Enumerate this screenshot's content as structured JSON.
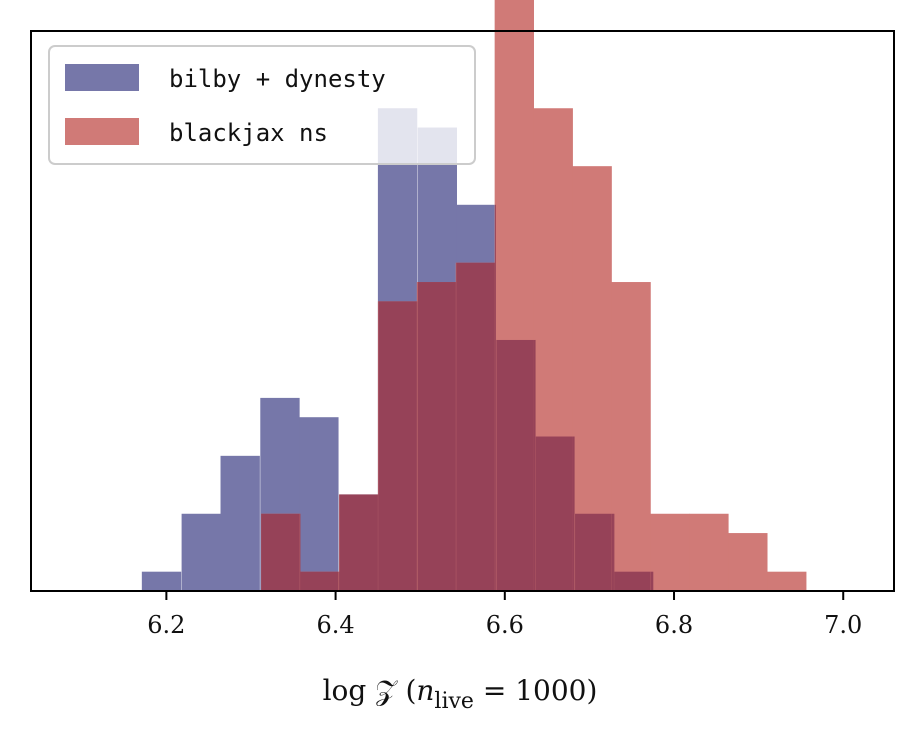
{
  "chart_data": {
    "type": "bar",
    "subtype": "overlaid histogram",
    "xlabel": "log 𝒵 (n_live = 1000)",
    "xlabel_parts": {
      "pre": "log 𝒵 (",
      "n": "n",
      "sub": "live",
      "post": " = 1000)"
    },
    "xlim": [
      6.04,
      7.06
    ],
    "ylim": [
      0,
      29
    ],
    "x_ticks": [
      6.2,
      6.4,
      6.6,
      6.8,
      7.0
    ],
    "x_tick_labels": [
      "6.2",
      "6.4",
      "6.6",
      "6.8",
      "7.0"
    ],
    "yaxis_visible": false,
    "grid": false,
    "legend_position": "top-left",
    "bin_width": 0.0465,
    "series": [
      {
        "name": "bilby + dynesty",
        "color": "#7677a9",
        "bin_starts": [
          6.171,
          6.218,
          6.264,
          6.311,
          6.357,
          6.404,
          6.45,
          6.497,
          6.543,
          6.59,
          6.636,
          6.683,
          6.729
        ],
        "counts": [
          1,
          4,
          7,
          10,
          9,
          5,
          25,
          24,
          20,
          13,
          8,
          4,
          1
        ]
      },
      {
        "name": "blackjax ns",
        "color": "#d07a77",
        "bin_starts": [
          6.312,
          6.358,
          6.404,
          6.45,
          6.496,
          6.542,
          6.588,
          6.634,
          6.68,
          6.726,
          6.772,
          6.818,
          6.864,
          6.91
        ],
        "counts": [
          4,
          1,
          5,
          15,
          16,
          17,
          31,
          25,
          22,
          16,
          4,
          4,
          3,
          1
        ]
      }
    ]
  },
  "legend": {
    "items": [
      {
        "label": "bilby + dynesty",
        "color": "#7677a9"
      },
      {
        "label": "blackjax ns",
        "color": "#d07a77"
      }
    ]
  },
  "colors": {
    "overlap": "#964258",
    "axis": "#000000"
  }
}
